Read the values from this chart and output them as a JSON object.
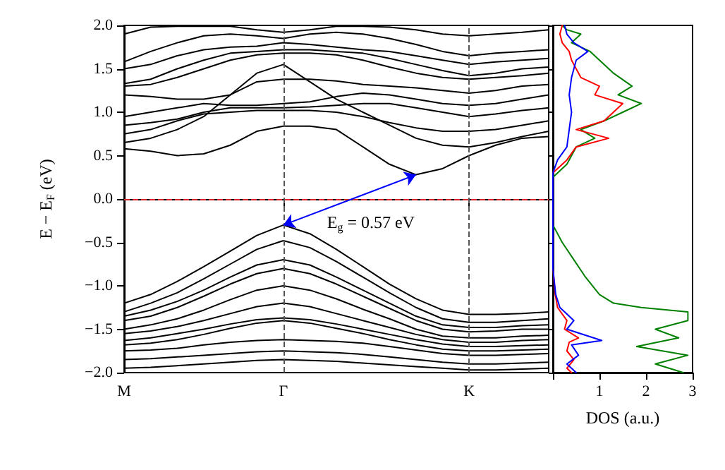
{
  "chart_data": [
    {
      "type": "line",
      "ylabel": "E − E$_{F}$ (eV)",
      "marker": "none",
      "grid": false,
      "categories": [
        "M",
        null,
        null,
        null,
        null,
        null,
        "Γ",
        null,
        null,
        null,
        null,
        null,
        null,
        "K",
        null,
        null,
        null
      ],
      "ylim": [
        -2,
        2
      ],
      "yticks": [
        {
          "value": -2,
          "label": "−2.0"
        },
        {
          "value": -1.5,
          "label": "−1.5"
        },
        {
          "value": -1,
          "label": "−1.0"
        },
        {
          "value": -0.5,
          "label": "−0.5"
        },
        {
          "value": 0,
          "label": "0.0"
        },
        {
          "value": 0.5,
          "label": "0.5"
        },
        {
          "value": 1,
          "label": "1.0"
        },
        {
          "value": 1.5,
          "label": "1.5"
        },
        {
          "value": 2,
          "label": "2.0"
        }
      ],
      "ref_lines": [
        {
          "axis": "y",
          "value": 0,
          "color": "#d62728",
          "line_style": "dashed"
        },
        {
          "axis": "x",
          "value": "Γ",
          "color": "#555555",
          "line_style": "dashed"
        },
        {
          "axis": "x",
          "value": "K",
          "color": "#555555",
          "line_style": "dashed"
        }
      ],
      "annotations": [
        "E$_{g}$ = 0.57 eV"
      ],
      "series": [
        {
          "color": "#000000",
          "values": [
            0.58,
            0.55,
            0.5,
            0.52,
            0.62,
            0.78,
            0.84,
            0.84,
            0.8,
            0.6,
            0.4,
            0.28,
            0.35,
            0.5,
            0.62,
            0.7,
            0.72
          ]
        },
        {
          "color": "#000000",
          "values": [
            0.65,
            0.7,
            0.8,
            0.95,
            1.2,
            1.45,
            1.55,
            1.35,
            1.15,
            1.0,
            0.85,
            0.7,
            0.62,
            0.6,
            0.65,
            0.72,
            0.78
          ]
        },
        {
          "color": "#000000",
          "values": [
            0.75,
            0.8,
            0.9,
            0.98,
            1.0,
            1.02,
            1.02,
            1.02,
            1.0,
            0.95,
            0.88,
            0.82,
            0.78,
            0.78,
            0.8,
            0.85,
            0.9
          ]
        },
        {
          "color": "#000000",
          "values": [
            0.85,
            0.88,
            0.92,
            1.0,
            1.05,
            1.05,
            1.05,
            1.06,
            1.08,
            1.1,
            1.1,
            1.05,
            1.0,
            0.95,
            0.98,
            1.02,
            1.05
          ]
        },
        {
          "color": "#000000",
          "values": [
            0.95,
            1.0,
            1.05,
            1.1,
            1.08,
            1.08,
            1.1,
            1.12,
            1.18,
            1.22,
            1.2,
            1.15,
            1.1,
            1.08,
            1.1,
            1.15,
            1.2
          ]
        },
        {
          "color": "#000000",
          "values": [
            1.2,
            1.18,
            1.15,
            1.15,
            1.2,
            1.35,
            1.38,
            1.38,
            1.36,
            1.32,
            1.3,
            1.28,
            1.25,
            1.22,
            1.25,
            1.3,
            1.32
          ]
        },
        {
          "color": "#000000",
          "values": [
            1.3,
            1.32,
            1.4,
            1.5,
            1.6,
            1.66,
            1.68,
            1.68,
            1.66,
            1.6,
            1.52,
            1.45,
            1.4,
            1.38,
            1.4,
            1.42,
            1.45
          ]
        },
        {
          "color": "#000000",
          "values": [
            1.33,
            1.38,
            1.5,
            1.6,
            1.68,
            1.7,
            1.72,
            1.72,
            1.7,
            1.68,
            1.62,
            1.55,
            1.48,
            1.42,
            1.45,
            1.5,
            1.52
          ]
        },
        {
          "color": "#000000",
          "values": [
            1.5,
            1.55,
            1.65,
            1.72,
            1.75,
            1.76,
            1.8,
            1.78,
            1.75,
            1.72,
            1.7,
            1.65,
            1.6,
            1.55,
            1.58,
            1.6,
            1.62
          ]
        },
        {
          "color": "#000000",
          "values": [
            1.58,
            1.7,
            1.8,
            1.88,
            1.9,
            1.88,
            1.85,
            1.9,
            1.92,
            1.9,
            1.85,
            1.78,
            1.7,
            1.65,
            1.68,
            1.7,
            1.72
          ]
        },
        {
          "color": "#000000",
          "values": [
            1.9,
            1.98,
            1.99,
            1.99,
            1.99,
            1.95,
            1.92,
            1.95,
            1.99,
            1.99,
            1.98,
            1.95,
            1.9,
            1.88,
            1.9,
            1.92,
            1.95
          ]
        },
        {
          "color": "#000000",
          "values": [
            -1.2,
            -1.1,
            -0.95,
            -0.78,
            -0.6,
            -0.42,
            -0.3,
            -0.4,
            -0.58,
            -0.78,
            -0.98,
            -1.15,
            -1.28,
            -1.33,
            -1.33,
            -1.32,
            -1.3
          ]
        },
        {
          "color": "#000000",
          "values": [
            -1.3,
            -1.2,
            -1.08,
            -0.92,
            -0.75,
            -0.58,
            -0.48,
            -0.56,
            -0.72,
            -0.9,
            -1.08,
            -1.25,
            -1.38,
            -1.42,
            -1.42,
            -1.4,
            -1.38
          ]
        },
        {
          "color": "#000000",
          "values": [
            -1.35,
            -1.28,
            -1.18,
            -1.05,
            -0.9,
            -0.76,
            -0.7,
            -0.76,
            -0.9,
            -1.05,
            -1.2,
            -1.35,
            -1.45,
            -1.48,
            -1.48,
            -1.46,
            -1.45
          ]
        },
        {
          "color": "#000000",
          "values": [
            -1.4,
            -1.35,
            -1.25,
            -1.12,
            -0.98,
            -0.86,
            -0.8,
            -0.86,
            -0.98,
            -1.12,
            -1.26,
            -1.4,
            -1.5,
            -1.53,
            -1.52,
            -1.5,
            -1.5
          ]
        },
        {
          "color": "#000000",
          "values": [
            -1.5,
            -1.45,
            -1.38,
            -1.28,
            -1.16,
            -1.05,
            -1.0,
            -1.05,
            -1.15,
            -1.27,
            -1.38,
            -1.5,
            -1.58,
            -1.6,
            -1.6,
            -1.58,
            -1.57
          ]
        },
        {
          "color": "#000000",
          "values": [
            -1.55,
            -1.52,
            -1.47,
            -1.4,
            -1.32,
            -1.24,
            -1.2,
            -1.24,
            -1.32,
            -1.4,
            -1.48,
            -1.56,
            -1.62,
            -1.65,
            -1.65,
            -1.63,
            -1.62
          ]
        },
        {
          "color": "#000000",
          "values": [
            -1.63,
            -1.6,
            -1.55,
            -1.5,
            -1.44,
            -1.39,
            -1.37,
            -1.39,
            -1.44,
            -1.5,
            -1.56,
            -1.62,
            -1.67,
            -1.7,
            -1.7,
            -1.69,
            -1.68
          ]
        },
        {
          "color": "#000000",
          "values": [
            -1.68,
            -1.66,
            -1.62,
            -1.56,
            -1.49,
            -1.43,
            -1.4,
            -1.43,
            -1.49,
            -1.55,
            -1.62,
            -1.68,
            -1.73,
            -1.75,
            -1.75,
            -1.74,
            -1.73
          ]
        },
        {
          "color": "#000000",
          "values": [
            -1.75,
            -1.74,
            -1.72,
            -1.68,
            -1.65,
            -1.63,
            -1.62,
            -1.63,
            -1.64,
            -1.66,
            -1.7,
            -1.74,
            -1.78,
            -1.8,
            -1.8,
            -1.79,
            -1.78
          ]
        },
        {
          "color": "#000000",
          "values": [
            -1.85,
            -1.84,
            -1.82,
            -1.8,
            -1.78,
            -1.76,
            -1.75,
            -1.76,
            -1.77,
            -1.79,
            -1.82,
            -1.85,
            -1.88,
            -1.9,
            -1.9,
            -1.89,
            -1.88
          ]
        },
        {
          "color": "#000000",
          "values": [
            -1.95,
            -1.94,
            -1.92,
            -1.9,
            -1.88,
            -1.86,
            -1.85,
            -1.86,
            -1.87,
            -1.89,
            -1.91,
            -1.93,
            -1.95,
            -1.97,
            -1.97,
            -1.96,
            -1.95
          ]
        }
      ]
    },
    {
      "type": "line",
      "orientation": "horizontal",
      "xlabel": "DOS (a.u.)",
      "marker": "none",
      "grid": false,
      "tick_labels": "x",
      "xlim": [
        0,
        3
      ],
      "xticks": [
        {
          "value": 0,
          "label": null
        },
        1,
        2,
        3
      ],
      "ylim": [
        -2,
        2
      ],
      "yticks": [
        {
          "value": -2,
          "label": null
        },
        {
          "value": -1.5,
          "label": null
        },
        {
          "value": -1,
          "label": null
        },
        {
          "value": -0.5,
          "label": null
        },
        {
          "value": 0,
          "label": null
        },
        {
          "value": 0.5,
          "label": null
        },
        {
          "value": 1,
          "label": null
        },
        {
          "value": 1.5,
          "label": null
        },
        {
          "value": 2,
          "label": null
        }
      ],
      "series": [
        {
          "color": "#008000",
          "x": [
            -2,
            -1.9,
            -1.8,
            -1.7,
            -1.6,
            -1.5,
            -1.4,
            -1.3,
            -1.25,
            -1.2,
            -1.1,
            -0.9,
            -0.7,
            -0.5,
            -0.3,
            0.25,
            0.4,
            0.6,
            0.7,
            0.8,
            0.9,
            1.0,
            1.1,
            1.2,
            1.3,
            1.45,
            1.5,
            1.6,
            1.7,
            1.8,
            1.9,
            1.95,
            2.0
          ],
          "values": [
            2.8,
            2.2,
            2.9,
            1.8,
            2.7,
            2.2,
            2.9,
            2.9,
            1.9,
            1.3,
            1.0,
            0.7,
            0.45,
            0.2,
            0,
            0,
            0.3,
            0.5,
            0.9,
            0.6,
            1.1,
            1.5,
            1.9,
            1.4,
            1.7,
            1.3,
            1.2,
            1.0,
            0.8,
            0.4,
            0.6,
            0.3,
            0.2
          ]
        },
        {
          "color": "#ff0000",
          "x": [
            -2,
            -1.95,
            -1.85,
            -1.75,
            -1.65,
            -1.6,
            -1.5,
            -1.4,
            -1.25,
            -1.1,
            -0.8,
            0.3,
            0.45,
            0.6,
            0.7,
            0.8,
            0.9,
            1.0,
            1.1,
            1.2,
            1.3,
            1.4,
            1.5,
            1.6,
            1.7,
            1.8,
            1.9,
            2.0
          ],
          "values": [
            0.4,
            0.3,
            0.45,
            0.3,
            0.35,
            0.55,
            0.25,
            0.3,
            0.1,
            0.05,
            0,
            0,
            0.3,
            0.5,
            1.2,
            0.5,
            1.1,
            1.3,
            1.5,
            0.9,
            1.0,
            0.6,
            0.5,
            0.4,
            0.35,
            0.2,
            0.15,
            0.2
          ]
        },
        {
          "color": "#0000ff",
          "x": [
            -2,
            -1.9,
            -1.8,
            -1.68,
            -1.63,
            -1.5,
            -1.4,
            -1.25,
            -1.1,
            -0.8,
            0.3,
            0.45,
            0.6,
            0.8,
            1.0,
            1.2,
            1.4,
            1.6,
            1.7,
            1.8,
            1.9,
            2.0
          ],
          "values": [
            0.5,
            0.3,
            0.55,
            0.4,
            1.05,
            0.3,
            0.45,
            0.15,
            0.06,
            0,
            0,
            0.1,
            0.3,
            0.35,
            0.4,
            0.35,
            0.4,
            0.5,
            0.75,
            0.45,
            0.3,
            0.25
          ]
        }
      ]
    }
  ]
}
